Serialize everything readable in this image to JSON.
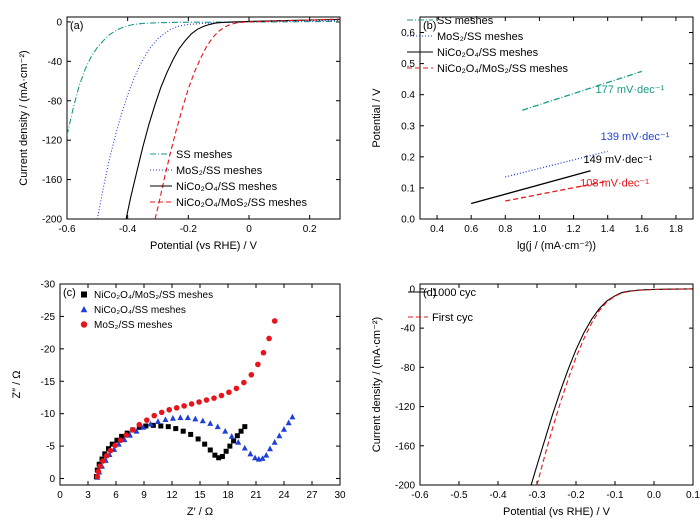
{
  "chart_data": [
    {
      "id": "a",
      "type": "line",
      "panel_label": "(a)",
      "xlabel": "Potential (vs RHE) / V",
      "ylabel": "Current density / (mA·cm⁻²)",
      "xlim": [
        -0.6,
        0.3
      ],
      "ylim": [
        -200,
        5
      ],
      "xticks": [
        -0.6,
        -0.4,
        -0.2,
        0.0,
        0.2
      ],
      "xtick_labels": [
        "-0.6",
        "-0.4",
        "-0.2",
        "0",
        "0.2"
      ],
      "yticks": [
        0,
        -40,
        -80,
        -120,
        -160,
        -200
      ],
      "ytick_labels": [
        "0",
        "-40",
        "-80",
        "-120",
        "-160",
        "-200"
      ],
      "legend_position": "bottom-right",
      "series": [
        {
          "name": "SS meshes",
          "color": "#1a9a8a",
          "dash": "6,2,1,2",
          "x": [
            -0.6,
            -0.58,
            -0.56,
            -0.54,
            -0.52,
            -0.5,
            -0.48,
            -0.46,
            -0.44,
            -0.42,
            -0.4,
            -0.38,
            -0.35,
            -0.3,
            -0.25,
            -0.2,
            -0.1,
            0.0,
            0.1,
            0.2,
            0.3
          ],
          "y": [
            -115,
            -88,
            -65,
            -48,
            -35,
            -26,
            -19,
            -13,
            -9,
            -6,
            -4,
            -2.5,
            -1.5,
            -0.8,
            -0.5,
            -0.3,
            -0.2,
            -0.1,
            0,
            0.3,
            0.5
          ]
        },
        {
          "name": "MoS₂/SS meshes",
          "color": "#1f3fd6",
          "dash": "1,2",
          "x": [
            -0.5,
            -0.48,
            -0.46,
            -0.44,
            -0.42,
            -0.4,
            -0.38,
            -0.36,
            -0.34,
            -0.32,
            -0.3,
            -0.28,
            -0.26,
            -0.24,
            -0.22,
            -0.2,
            -0.15,
            -0.1,
            0.0,
            0.1,
            0.2,
            0.3
          ],
          "y": [
            -200,
            -168,
            -139,
            -115,
            -93,
            -74,
            -58,
            -44,
            -33,
            -24,
            -17,
            -12,
            -8,
            -5,
            -3.5,
            -2.5,
            -1.5,
            -0.8,
            0,
            0.5,
            1,
            1.5
          ]
        },
        {
          "name": "NiCo₂O₄/SS meshes",
          "color": "#000000",
          "dash": "",
          "x": [
            -0.405,
            -0.39,
            -0.37,
            -0.35,
            -0.33,
            -0.31,
            -0.29,
            -0.27,
            -0.25,
            -0.23,
            -0.21,
            -0.19,
            -0.17,
            -0.15,
            -0.13,
            -0.11,
            -0.09,
            -0.05,
            0.0,
            0.1,
            0.2,
            0.3
          ],
          "y": [
            -200,
            -178,
            -152,
            -127,
            -104,
            -84,
            -66,
            -51,
            -38,
            -27,
            -19,
            -12,
            -7.5,
            -4.5,
            -2.5,
            -1.2,
            -0.5,
            0,
            0.5,
            1.2,
            2,
            2.5
          ]
        },
        {
          "name": "NiCo₂O₄/MoS₂/SS meshes",
          "color": "#e8141b",
          "dash": "5,3",
          "x": [
            -0.31,
            -0.3,
            -0.28,
            -0.26,
            -0.24,
            -0.22,
            -0.2,
            -0.18,
            -0.16,
            -0.14,
            -0.12,
            -0.1,
            -0.08,
            -0.06,
            -0.04,
            -0.02,
            0.0,
            0.1,
            0.2,
            0.3
          ],
          "y": [
            -200,
            -188,
            -160,
            -134,
            -110,
            -88,
            -68,
            -51,
            -37,
            -25,
            -16,
            -9.5,
            -5,
            -2.5,
            -1,
            -0.3,
            0,
            1,
            2,
            3
          ]
        }
      ]
    },
    {
      "id": "b",
      "type": "line",
      "panel_label": "(b)",
      "xlabel": "lg(j / (mA·cm⁻²))",
      "ylabel": "Potential / V",
      "xlim": [
        0.3,
        1.9
      ],
      "ylim": [
        0.0,
        0.65
      ],
      "xticks": [
        0.4,
        0.6,
        0.8,
        1.0,
        1.2,
        1.4,
        1.6,
        1.8
      ],
      "xtick_labels": [
        "0.4",
        "0.6",
        "0.8",
        "1.0",
        "1.2",
        "1.4",
        "1.6",
        "1.8"
      ],
      "yticks": [
        0.0,
        0.1,
        0.2,
        0.3,
        0.4,
        0.5,
        0.6
      ],
      "ytick_labels": [
        "0.0",
        "0.1",
        "0.2",
        "0.3",
        "0.4",
        "0.5",
        "0.6"
      ],
      "legend_position": "top-left",
      "series": [
        {
          "name": "SS meshes",
          "color": "#1a9a8a",
          "dash": "6,2,1,2",
          "x": [
            0.9,
            1.6
          ],
          "y": [
            0.35,
            0.475
          ]
        },
        {
          "name": "MoS₂/SS meshes",
          "color": "#1f3fd6",
          "dash": "1,2",
          "x": [
            0.8,
            1.4
          ],
          "y": [
            0.135,
            0.218
          ]
        },
        {
          "name": "NiCo₂O₄/SS meshes",
          "color": "#000000",
          "dash": "",
          "x": [
            0.6,
            1.3
          ],
          "y": [
            0.05,
            0.155
          ]
        },
        {
          "name": "NiCo₂O₄/MoS₂/SS meshes",
          "color": "#e8141b",
          "dash": "5,3",
          "x": [
            0.8,
            1.4
          ],
          "y": [
            0.058,
            0.122
          ]
        }
      ],
      "annotations": [
        {
          "text": "177 mV·dec⁻¹",
          "color": "#1a9a8a",
          "x": 1.53,
          "y": 0.405
        },
        {
          "text": "139 mV·dec⁻¹",
          "color": "#1f3fd6",
          "x": 1.56,
          "y": 0.255
        },
        {
          "text": "149 mV·dec⁻¹",
          "color": "#000000",
          "x": 1.46,
          "y": 0.18
        },
        {
          "text": "108 mV·dec⁻¹",
          "color": "#e8141b",
          "x": 1.44,
          "y": 0.105
        }
      ]
    },
    {
      "id": "c",
      "type": "scatter",
      "panel_label": "(c)",
      "xlabel": "Z′ / Ω",
      "ylabel": "Z″ / Ω",
      "xlim": [
        0,
        30
      ],
      "ylim": [
        1,
        -30
      ],
      "xticks": [
        0,
        3,
        6,
        9,
        12,
        15,
        18,
        21,
        24,
        27,
        30
      ],
      "xtick_labels": [
        "0",
        "3",
        "6",
        "9",
        "12",
        "15",
        "18",
        "21",
        "24",
        "27",
        "30"
      ],
      "yticks": [
        0,
        -5,
        -10,
        -15,
        -20,
        -25,
        -30
      ],
      "ytick_labels": [
        "0",
        "-5",
        "-10",
        "-15",
        "-20",
        "-25",
        "-30"
      ],
      "legend_position": "top-left",
      "series": [
        {
          "name": "NiCo₂O₄/MoS₂/SS meshes",
          "color": "#000000",
          "marker": "square",
          "x": [
            3.9,
            4.0,
            4.2,
            4.5,
            4.8,
            5.2,
            5.6,
            6.1,
            6.6,
            7.2,
            7.8,
            8.5,
            9.2,
            10.0,
            10.8,
            11.6,
            12.4,
            13.2,
            14.0,
            14.8,
            15.5,
            16.1,
            16.6,
            17.0,
            17.4,
            17.8,
            18.2,
            18.6,
            19.0,
            19.4,
            19.8
          ],
          "y": [
            -0.3,
            -1.3,
            -2.2,
            -3.0,
            -3.8,
            -4.6,
            -5.3,
            -5.9,
            -6.5,
            -7.0,
            -7.5,
            -7.9,
            -8.1,
            -8.2,
            -8.1,
            -8.0,
            -7.7,
            -7.3,
            -6.8,
            -6.1,
            -5.3,
            -4.4,
            -3.6,
            -3.2,
            -3.4,
            -4.2,
            -5.0,
            -5.8,
            -6.6,
            -7.3,
            -8.0
          ]
        },
        {
          "name": "NiCo₂O₄/SS meshes",
          "color": "#1f3fd6",
          "marker": "triangle",
          "x": [
            4.0,
            4.2,
            4.5,
            4.9,
            5.3,
            5.8,
            6.3,
            6.9,
            7.5,
            8.2,
            8.9,
            9.7,
            10.5,
            11.3,
            12.1,
            12.9,
            13.7,
            14.5,
            15.3,
            16.1,
            16.9,
            17.7,
            18.4,
            19.1,
            19.8,
            20.4,
            20.9,
            21.3,
            21.7,
            22.1,
            22.5,
            23.0,
            23.5,
            24.0,
            24.5,
            24.9
          ],
          "y": [
            -0.2,
            -1.0,
            -1.9,
            -2.8,
            -3.7,
            -4.5,
            -5.3,
            -6.0,
            -6.7,
            -7.3,
            -7.9,
            -8.4,
            -8.8,
            -9.1,
            -9.3,
            -9.4,
            -9.4,
            -9.2,
            -8.9,
            -8.5,
            -8.0,
            -7.3,
            -6.5,
            -5.6,
            -4.7,
            -3.8,
            -3.2,
            -3.0,
            -3.1,
            -3.6,
            -4.6,
            -5.6,
            -6.6,
            -7.6,
            -8.6,
            -9.5
          ]
        },
        {
          "name": "MoS₂/SS meshes",
          "color": "#e8141b",
          "marker": "circle",
          "x": [
            4.0,
            4.1,
            4.3,
            4.6,
            5.0,
            5.4,
            5.9,
            6.5,
            7.1,
            7.8,
            8.5,
            9.3,
            10.1,
            10.9,
            11.7,
            12.5,
            13.3,
            14.1,
            14.9,
            15.7,
            16.5,
            17.3,
            18.1,
            18.9,
            19.7,
            20.5,
            21.2,
            21.8,
            22.4,
            23.0
          ],
          "y": [
            -0.3,
            -1.1,
            -1.9,
            -2.7,
            -3.5,
            -4.3,
            -5.1,
            -5.9,
            -6.7,
            -7.5,
            -8.3,
            -9.0,
            -9.7,
            -10.2,
            -10.6,
            -10.9,
            -11.2,
            -11.5,
            -11.8,
            -12.1,
            -12.4,
            -12.8,
            -13.3,
            -13.9,
            -14.8,
            -16.0,
            -17.6,
            -19.4,
            -21.6,
            -24.3
          ]
        }
      ]
    },
    {
      "id": "d",
      "type": "line",
      "panel_label": "(d)",
      "xlabel": "Potential (vs RHE) / V",
      "ylabel": "Current density / (mA·cm⁻²)",
      "xlim": [
        -0.6,
        0.1
      ],
      "ylim": [
        -200,
        5
      ],
      "xticks": [
        -0.6,
        -0.5,
        -0.4,
        -0.3,
        -0.2,
        -0.1,
        0.0,
        0.1
      ],
      "xtick_labels": [
        "-0.6",
        "-0.5",
        "-0.4",
        "-0.3",
        "-0.2",
        "-0.1",
        "0.0",
        "0.1"
      ],
      "yticks": [
        0,
        -40,
        -80,
        -120,
        -160,
        -200
      ],
      "ytick_labels": [
        "0",
        "-40",
        "-80",
        "-120",
        "-160",
        "-200"
      ],
      "legend_position": "top-left",
      "series": [
        {
          "name": "1000 cyc",
          "color": "#000000",
          "dash": "",
          "x": [
            -0.315,
            -0.3,
            -0.28,
            -0.26,
            -0.24,
            -0.22,
            -0.2,
            -0.18,
            -0.16,
            -0.14,
            -0.12,
            -0.1,
            -0.09,
            -0.08,
            -0.06,
            -0.04,
            -0.02,
            0.0,
            0.05,
            0.1
          ],
          "y": [
            -200,
            -180,
            -154,
            -128,
            -104,
            -82,
            -62,
            -45,
            -31,
            -20,
            -12,
            -7,
            -5,
            -3.5,
            -2,
            -1.3,
            -0.8,
            -0.5,
            -0.2,
            0
          ]
        },
        {
          "name": "First cyc",
          "color": "#e8141b",
          "dash": "5,3",
          "x": [
            -0.3,
            -0.28,
            -0.26,
            -0.24,
            -0.22,
            -0.2,
            -0.18,
            -0.16,
            -0.14,
            -0.12,
            -0.1,
            -0.09,
            -0.08,
            -0.06,
            -0.04,
            -0.02,
            0.0,
            0.05,
            0.1
          ],
          "y": [
            -200,
            -170,
            -142,
            -116,
            -92,
            -70,
            -51,
            -35,
            -22,
            -13,
            -7.5,
            -5.5,
            -4,
            -2.3,
            -1.5,
            -1,
            -0.6,
            -0.3,
            0
          ]
        }
      ]
    }
  ]
}
